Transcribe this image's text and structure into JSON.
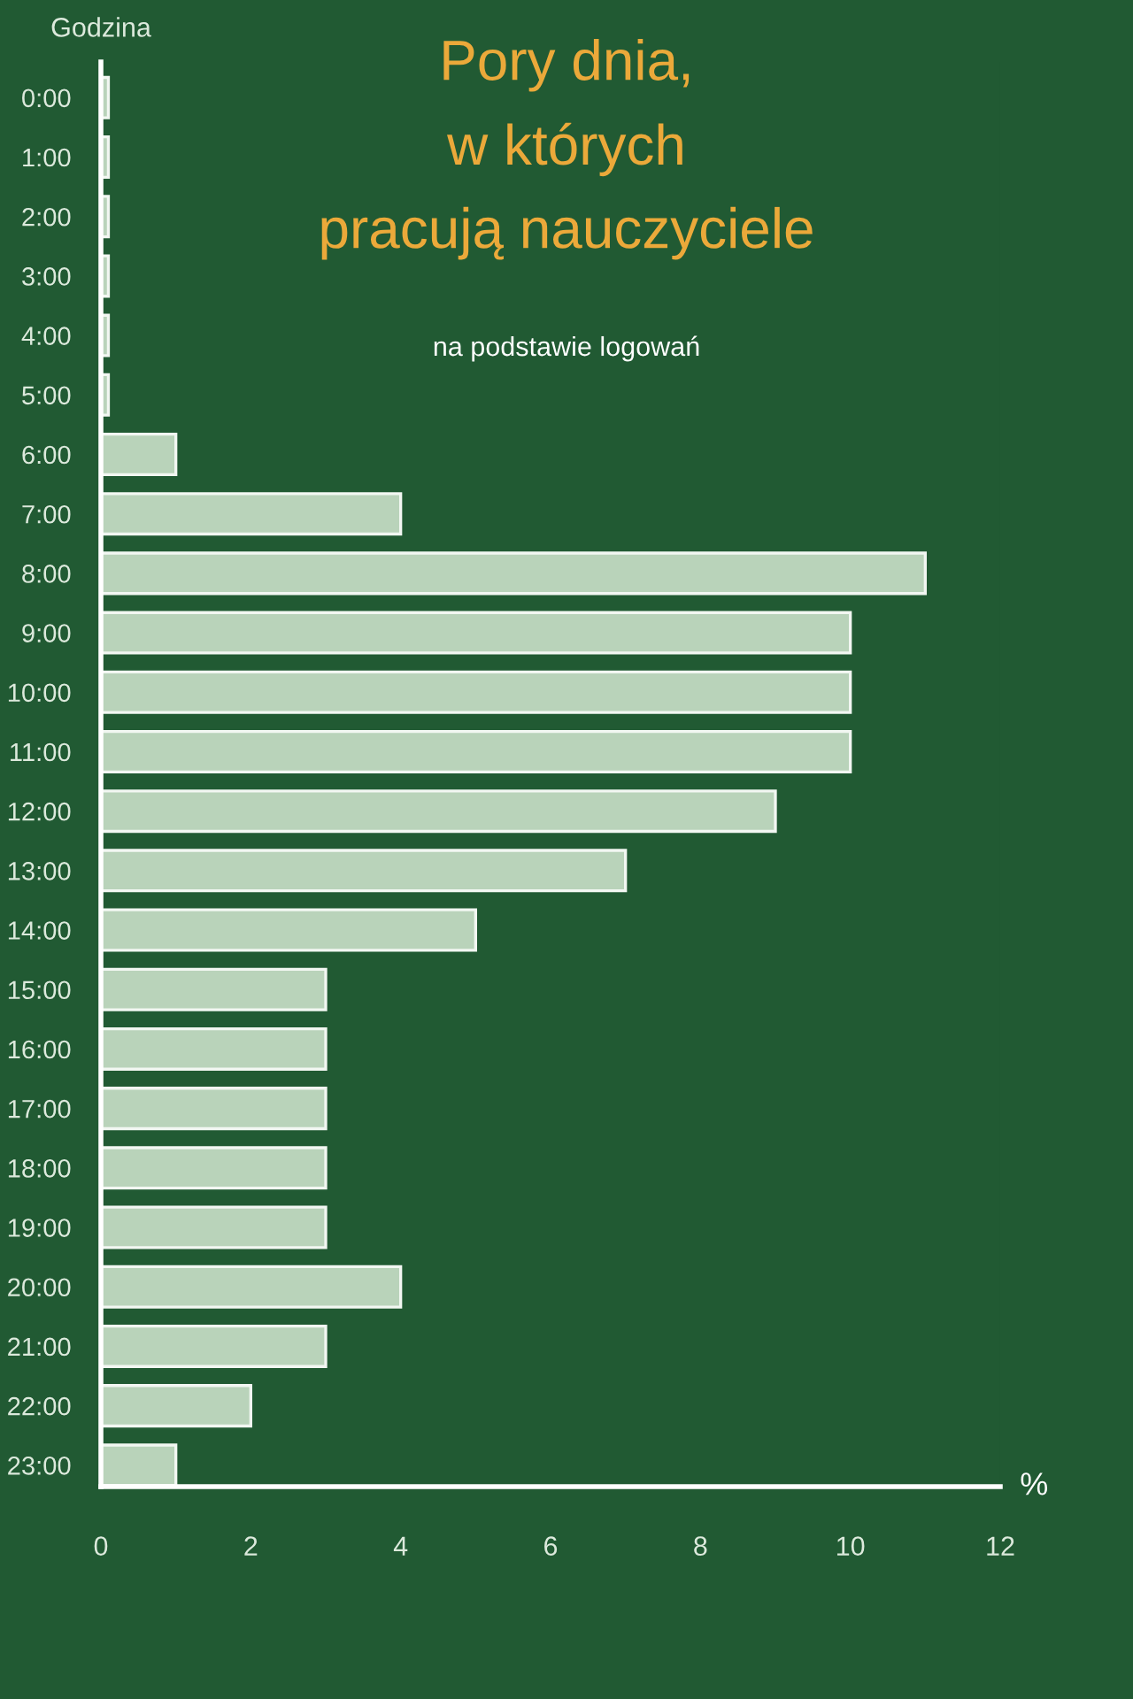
{
  "chart_data": {
    "type": "bar",
    "orientation": "horizontal",
    "title": "Pory dnia,\nw których\npracują nauczyciele",
    "subtitle": "na podstawie logowań",
    "xlabel": "%",
    "ylabel": "Godzina",
    "categories": [
      "0:00",
      "1:00",
      "2:00",
      "3:00",
      "4:00",
      "5:00",
      "6:00",
      "7:00",
      "8:00",
      "9:00",
      "10:00",
      "11:00",
      "12:00",
      "13:00",
      "14:00",
      "15:00",
      "16:00",
      "17:00",
      "18:00",
      "19:00",
      "20:00",
      "21:00",
      "22:00",
      "23:00"
    ],
    "values": [
      0.1,
      0.1,
      0.1,
      0.1,
      0.1,
      0.1,
      1,
      4,
      11,
      10,
      10,
      10,
      9,
      7,
      5,
      3,
      3,
      3,
      3,
      3,
      4,
      3,
      2,
      1
    ],
    "color": "#b9d3ba",
    "xlim": [
      0,
      12
    ],
    "xticks": [
      0,
      2,
      4,
      6,
      8,
      10,
      12
    ]
  }
}
